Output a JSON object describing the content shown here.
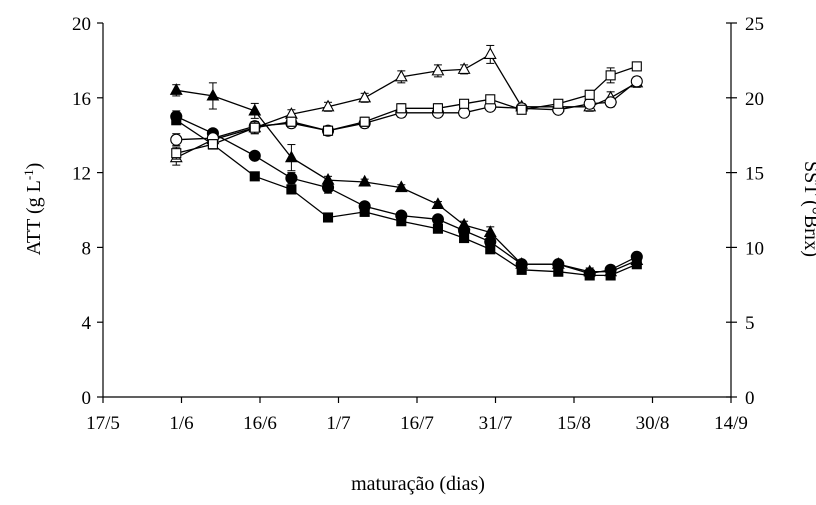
{
  "chart_data": {
    "type": "line",
    "title": "",
    "xlabel": "maturação (dias)",
    "ylabel_left": "ATT (g L-1)",
    "ylabel_left_parts": {
      "base": "ATT (g L",
      "sup": "-1",
      "end": ")"
    },
    "ylabel_right": "SST (°Brix)",
    "x_ticks": [
      "17/5",
      "1/6",
      "16/6",
      "1/7",
      "16/7",
      "31/7",
      "15/8",
      "30/8",
      "14/9"
    ],
    "x_tick_days": [
      0,
      15,
      30,
      45,
      60,
      75,
      90,
      105,
      120
    ],
    "x_range_days": [
      0,
      120
    ],
    "ylim_left": [
      0,
      20
    ],
    "y_ticks_left": [
      0,
      4,
      8,
      12,
      16,
      20
    ],
    "ylim_right": [
      0,
      25
    ],
    "y_ticks_right": [
      0,
      5,
      10,
      15,
      20,
      25
    ],
    "grid": false,
    "legend": "none",
    "series": [
      {
        "axis": "left",
        "marker": "triangle",
        "filled": true,
        "points": [
          {
            "x": "31/5",
            "y": 16.4,
            "err": 0.3
          },
          {
            "x": "7/6",
            "y": 16.1,
            "err": 0.7
          },
          {
            "x": "15/6",
            "y": 15.3,
            "err": 0.4
          },
          {
            "x": "22/6",
            "y": 12.8,
            "err": 0.7
          },
          {
            "x": "29/6",
            "y": 11.6,
            "err": 0.2
          },
          {
            "x": "6/7",
            "y": 11.5,
            "err": 0.15
          },
          {
            "x": "13/7",
            "y": 11.2,
            "err": 0.15
          },
          {
            "x": "20/7",
            "y": 10.3,
            "err": 0.15
          },
          {
            "x": "25/7",
            "y": 9.2,
            "err": 0.2
          },
          {
            "x": "30/7",
            "y": 8.8,
            "err": 0.3
          },
          {
            "x": "5/8",
            "y": 7.1,
            "err": 0.2
          },
          {
            "x": "12/8",
            "y": 7.1,
            "err": 0.2
          },
          {
            "x": "18/8",
            "y": 6.7,
            "err": 0.2
          },
          {
            "x": "22/8",
            "y": 6.7,
            "err": 0.2
          },
          {
            "x": "27/8",
            "y": 7.3,
            "err": 0.2
          }
        ]
      },
      {
        "axis": "left",
        "marker": "circle",
        "filled": true,
        "points": [
          {
            "x": "31/5",
            "y": 15.0,
            "err": 0.3
          },
          {
            "x": "7/6",
            "y": 14.1,
            "err": 0.2
          },
          {
            "x": "15/6",
            "y": 12.9,
            "err": 0.15
          },
          {
            "x": "22/6",
            "y": 11.7,
            "err": 0.3
          },
          {
            "x": "29/6",
            "y": 11.2,
            "err": 0.3
          },
          {
            "x": "6/7",
            "y": 10.2,
            "err": 0.2
          },
          {
            "x": "13/7",
            "y": 9.7,
            "err": 0.2
          },
          {
            "x": "20/7",
            "y": 9.5,
            "err": 0.2
          },
          {
            "x": "25/7",
            "y": 8.9,
            "err": 0.2
          },
          {
            "x": "30/7",
            "y": 8.3,
            "err": 0.2
          },
          {
            "x": "5/8",
            "y": 7.1,
            "err": 0.15
          },
          {
            "x": "12/8",
            "y": 7.1,
            "err": 0.15
          },
          {
            "x": "18/8",
            "y": 6.6,
            "err": 0.15
          },
          {
            "x": "22/8",
            "y": 6.8,
            "err": 0.15
          },
          {
            "x": "27/8",
            "y": 7.5,
            "err": 0.15
          }
        ]
      },
      {
        "axis": "left",
        "marker": "square",
        "filled": true,
        "points": [
          {
            "x": "31/5",
            "y": 14.8,
            "err": 0.2
          },
          {
            "x": "7/6",
            "y": 13.5,
            "err": 0.2
          },
          {
            "x": "15/6",
            "y": 11.8,
            "err": 0.15
          },
          {
            "x": "22/6",
            "y": 11.1,
            "err": 0.2
          },
          {
            "x": "29/6",
            "y": 9.6,
            "err": 0.15
          },
          {
            "x": "6/7",
            "y": 9.9,
            "err": 0.15
          },
          {
            "x": "13/7",
            "y": 9.4,
            "err": 0.15
          },
          {
            "x": "20/7",
            "y": 9.0,
            "err": 0.15
          },
          {
            "x": "25/7",
            "y": 8.5,
            "err": 0.15
          },
          {
            "x": "30/7",
            "y": 7.9,
            "err": 0.15
          },
          {
            "x": "5/8",
            "y": 6.8,
            "err": 0.15
          },
          {
            "x": "12/8",
            "y": 6.7,
            "err": 0.15
          },
          {
            "x": "18/8",
            "y": 6.5,
            "err": 0.15
          },
          {
            "x": "22/8",
            "y": 6.5,
            "err": 0.15
          },
          {
            "x": "27/8",
            "y": 7.1,
            "err": 0.2
          }
        ]
      },
      {
        "axis": "right",
        "marker": "triangle",
        "filled": false,
        "points": [
          {
            "x": "31/5",
            "y": 16.0,
            "err": 0.5
          },
          {
            "x": "7/6",
            "y": 17.2,
            "err": 0.3
          },
          {
            "x": "15/6",
            "y": 18.0,
            "err": 0.4
          },
          {
            "x": "22/6",
            "y": 18.9,
            "err": 0.3
          },
          {
            "x": "29/6",
            "y": 19.4,
            "err": 0.3
          },
          {
            "x": "6/7",
            "y": 20.0,
            "err": 0.3
          },
          {
            "x": "13/7",
            "y": 21.4,
            "err": 0.4
          },
          {
            "x": "20/7",
            "y": 21.8,
            "err": 0.4
          },
          {
            "x": "25/7",
            "y": 21.9,
            "err": 0.3
          },
          {
            "x": "30/7",
            "y": 22.9,
            "err": 0.6
          },
          {
            "x": "5/8",
            "y": 19.4,
            "err": 0.2
          },
          {
            "x": "12/8",
            "y": 19.4,
            "err": 0.2
          },
          {
            "x": "18/8",
            "y": 19.4,
            "err": 0.3
          },
          {
            "x": "22/8",
            "y": 20.0,
            "err": 0.4
          },
          {
            "x": "27/8",
            "y": 21.0,
            "err": 0.3
          }
        ]
      },
      {
        "axis": "right",
        "marker": "circle",
        "filled": false,
        "points": [
          {
            "x": "31/5",
            "y": 17.2,
            "err": 0.4
          },
          {
            "x": "7/6",
            "y": 17.3,
            "err": 0.3
          },
          {
            "x": "15/6",
            "y": 18.1,
            "err": 0.3
          },
          {
            "x": "22/6",
            "y": 18.3,
            "err": 0.3
          },
          {
            "x": "29/6",
            "y": 17.8,
            "err": 0.3
          },
          {
            "x": "6/7",
            "y": 18.3,
            "err": 0.3
          },
          {
            "x": "13/7",
            "y": 19.0,
            "err": 0.3
          },
          {
            "x": "20/7",
            "y": 19.0,
            "err": 0.2
          },
          {
            "x": "25/7",
            "y": 19.0,
            "err": 0.2
          },
          {
            "x": "30/7",
            "y": 19.4,
            "err": 0.2
          },
          {
            "x": "5/8",
            "y": 19.3,
            "err": 0.2
          },
          {
            "x": "12/8",
            "y": 19.2,
            "err": 0.2
          },
          {
            "x": "18/8",
            "y": 19.6,
            "err": 0.2
          },
          {
            "x": "22/8",
            "y": 19.7,
            "err": 0.3
          },
          {
            "x": "27/8",
            "y": 21.1,
            "err": 0.3
          }
        ]
      },
      {
        "axis": "right",
        "marker": "square",
        "filled": false,
        "points": [
          {
            "x": "31/5",
            "y": 16.3,
            "err": 0.4
          },
          {
            "x": "7/6",
            "y": 16.9,
            "err": 0.3
          },
          {
            "x": "15/6",
            "y": 18.0,
            "err": 0.4
          },
          {
            "x": "22/6",
            "y": 18.4,
            "err": 0.3
          },
          {
            "x": "29/6",
            "y": 17.8,
            "err": 0.3
          },
          {
            "x": "6/7",
            "y": 18.4,
            "err": 0.3
          },
          {
            "x": "13/7",
            "y": 19.3,
            "err": 0.3
          },
          {
            "x": "20/7",
            "y": 19.3,
            "err": 0.3
          },
          {
            "x": "25/7",
            "y": 19.6,
            "err": 0.2
          },
          {
            "x": "30/7",
            "y": 19.9,
            "err": 0.2
          },
          {
            "x": "5/8",
            "y": 19.2,
            "err": 0.2
          },
          {
            "x": "12/8",
            "y": 19.6,
            "err": 0.2
          },
          {
            "x": "18/8",
            "y": 20.2,
            "err": 0.3
          },
          {
            "x": "22/8",
            "y": 21.5,
            "err": 0.5
          },
          {
            "x": "27/8",
            "y": 22.1,
            "err": 0.2
          }
        ]
      }
    ]
  }
}
